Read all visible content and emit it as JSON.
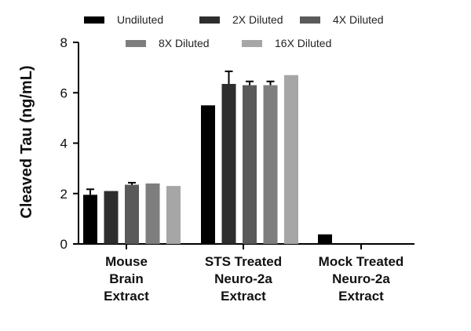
{
  "chart_data": {
    "type": "bar",
    "title": "",
    "xlabel": "",
    "ylabel": "Cleaved Tau (ng/mL)",
    "ylim": [
      0,
      8
    ],
    "yticks": [
      "0",
      "2",
      "4",
      "6",
      "8"
    ],
    "grid": false,
    "legend_position": "top",
    "categories": [
      [
        "Mouse",
        "Brain",
        "Extract"
      ],
      [
        "STS Treated",
        "Neuro-2a",
        "Extract"
      ],
      [
        "Mock Treated",
        "Neuro-2a",
        "Extract"
      ]
    ],
    "series": [
      {
        "name": "Undiluted",
        "color": "#000000",
        "values": [
          1.95,
          5.5,
          0.38
        ],
        "error": [
          0.22,
          null,
          null
        ]
      },
      {
        "name": "2X Diluted",
        "color": "#2e2e2e",
        "values": [
          2.1,
          6.35,
          null
        ],
        "error": [
          null,
          0.5,
          null
        ]
      },
      {
        "name": "4X Diluted",
        "color": "#5a5a5a",
        "values": [
          2.35,
          6.3,
          null
        ],
        "error": [
          0.08,
          0.15,
          null
        ]
      },
      {
        "name": "8X Diluted",
        "color": "#7e7e7e",
        "values": [
          2.4,
          6.3,
          null
        ],
        "error": [
          null,
          0.15,
          null
        ]
      },
      {
        "name": "16X Diluted",
        "color": "#a6a6a6",
        "values": [
          2.3,
          6.7,
          null
        ],
        "error": [
          null,
          null,
          null
        ]
      }
    ]
  }
}
